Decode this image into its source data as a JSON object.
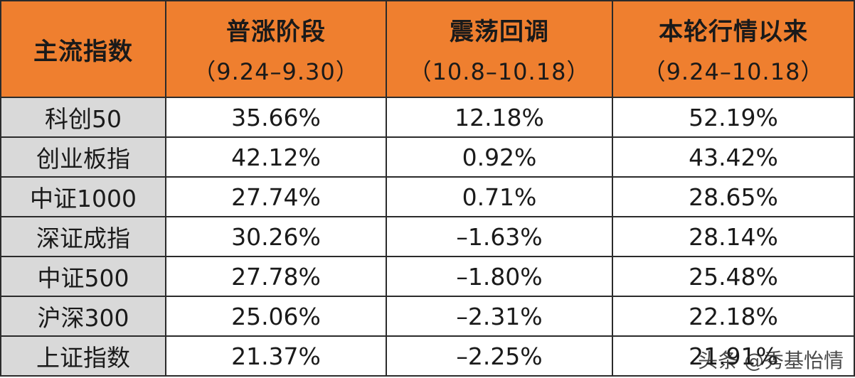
{
  "table": {
    "headers": [
      {
        "title": "主流指数",
        "sub": ""
      },
      {
        "title": "普涨阶段",
        "sub": "（9.24–9.30）"
      },
      {
        "title": "震荡回调",
        "sub": "（10.8–10.18）"
      },
      {
        "title": "本轮行情以来",
        "sub": "（9.24–10.18）"
      }
    ],
    "rows": [
      [
        "科创50",
        "35.66%",
        "12.18%",
        "52.19%"
      ],
      [
        "创业板指",
        "42.12%",
        "0.92%",
        "43.42%"
      ],
      [
        "中证1000",
        "27.74%",
        "0.71%",
        "28.65%"
      ],
      [
        "深证成指",
        "30.26%",
        "–1.63%",
        "28.14%"
      ],
      [
        "中证500",
        "27.78%",
        "–1.80%",
        "25.48%"
      ],
      [
        "沪深300",
        "25.06%",
        "–2.31%",
        "22.18%"
      ],
      [
        "上证指数",
        "21.37%",
        "–2.25%",
        "21.91%"
      ]
    ]
  },
  "watermark": "头条 @秀基怡情",
  "colors": {
    "header_bg": "#ef7f2f",
    "name_col_bg": "#d9d9d9",
    "border": "#2b2b2b"
  }
}
